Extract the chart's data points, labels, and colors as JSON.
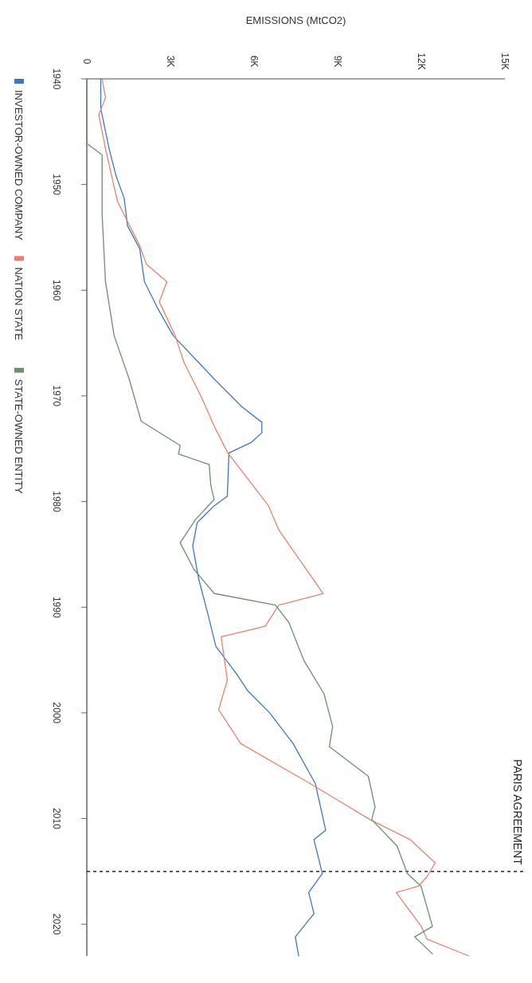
{
  "chart_data": {
    "type": "line",
    "xlabel": "EMISSIONS (MtCO2)",
    "ylim": [
      2023,
      1940
    ],
    "yticks": [
      1940,
      1950,
      1960,
      1970,
      1980,
      1990,
      2000,
      2010,
      2020
    ],
    "xlim": [
      0,
      15000
    ],
    "xticks": [
      {
        "value": 0,
        "label": "0"
      },
      {
        "value": 3000,
        "label": "3K"
      },
      {
        "value": 6000,
        "label": "6K"
      },
      {
        "value": 9000,
        "label": "9K"
      },
      {
        "value": 12000,
        "label": "12K"
      },
      {
        "value": 15000,
        "label": "15K"
      }
    ],
    "legend": "left",
    "grid": false,
    "ref_lines": [
      {
        "axis": "y",
        "value": 2015,
        "label": "PARIS AGREEMENT",
        "color": "#222222",
        "line_style": "dashed"
      }
    ],
    "series": [
      {
        "name": "INVESTOR-OWNED COMPANY",
        "color": "#3a78c0",
        "values": [
          1940,
          1942.8,
          1946.6,
          1949.1,
          1951.3,
          1953.9,
          1956.1,
          1959.2,
          1961.8,
          1964.3,
          1968.4,
          1971,
          1972.5,
          1973.5,
          1974.4,
          1975.4,
          1979.5,
          1980.4,
          1982,
          1984.2,
          1987.4,
          1990.5,
          1993.7,
          1996.3,
          1997.9,
          2000,
          2002.9,
          2006.7,
          2011.1,
          2012,
          2015.2,
          2017,
          2019,
          2021.2,
          2023
        ],
        "x": [
          500,
          500,
          800,
          1040,
          1340,
          1460,
          1900,
          2070,
          2560,
          3100,
          4570,
          5550,
          6280,
          6280,
          5900,
          5100,
          5040,
          4570,
          3960,
          3800,
          4020,
          4330,
          4630,
          5370,
          5770,
          6560,
          7400,
          8200,
          8570,
          8150,
          8450,
          7960,
          8150,
          7480,
          7600
        ]
      },
      {
        "name": "NATION STATE",
        "color": "#e8826e",
        "values": [
          1940,
          1941.8,
          1943.4,
          1946.6,
          1951.6,
          1953.5,
          1955.8,
          1957.5,
          1959.2,
          1961.1,
          1964.3,
          1966.8,
          1970,
          1973.2,
          1975.4,
          1980.4,
          1982.7,
          1988.7,
          1989.8,
          1991.8,
          1992.8,
          1996.9,
          1999.7,
          2002.9,
          2006.7,
          2010.1,
          2012,
          2014.2,
          2015.5,
          2016.4,
          2017,
          2020.2,
          2021.4,
          2023
        ],
        "x": [
          550,
          670,
          430,
          670,
          1100,
          1460,
          1900,
          2130,
          2870,
          2600,
          3170,
          3480,
          4090,
          4630,
          5060,
          6520,
          6890,
          8480,
          6890,
          6400,
          4820,
          5040,
          4730,
          5520,
          8020,
          10160,
          11600,
          12500,
          12200,
          11900,
          11100,
          12000,
          12200,
          13700
        ]
      },
      {
        "name": "STATE-OWNED ENTITY",
        "color": "#6b8f71",
        "values": [
          1940,
          1946.1,
          1947.2,
          1952.9,
          1959.2,
          1964.3,
          1968.4,
          1972.4,
          1974.7,
          1975.5,
          1976.5,
          1978.5,
          1979.8,
          1981.7,
          1983.9,
          1986.4,
          1988.7,
          1989.8,
          1991.5,
          1995,
          1998.2,
          2001.3,
          2003.2,
          2006,
          2008.9,
          2010.1,
          2012.6,
          2015.2,
          2016.4,
          2020.2,
          2021.2,
          2022.8
        ],
        "x": [
          0,
          0,
          550,
          550,
          670,
          980,
          1520,
          1950,
          3350,
          3290,
          4390,
          4450,
          4570,
          3900,
          3350,
          3840,
          4570,
          6770,
          7260,
          7780,
          8510,
          8820,
          8700,
          10100,
          10340,
          10220,
          11130,
          11500,
          11990,
          12400,
          11760,
          12400
        ]
      }
    ]
  }
}
